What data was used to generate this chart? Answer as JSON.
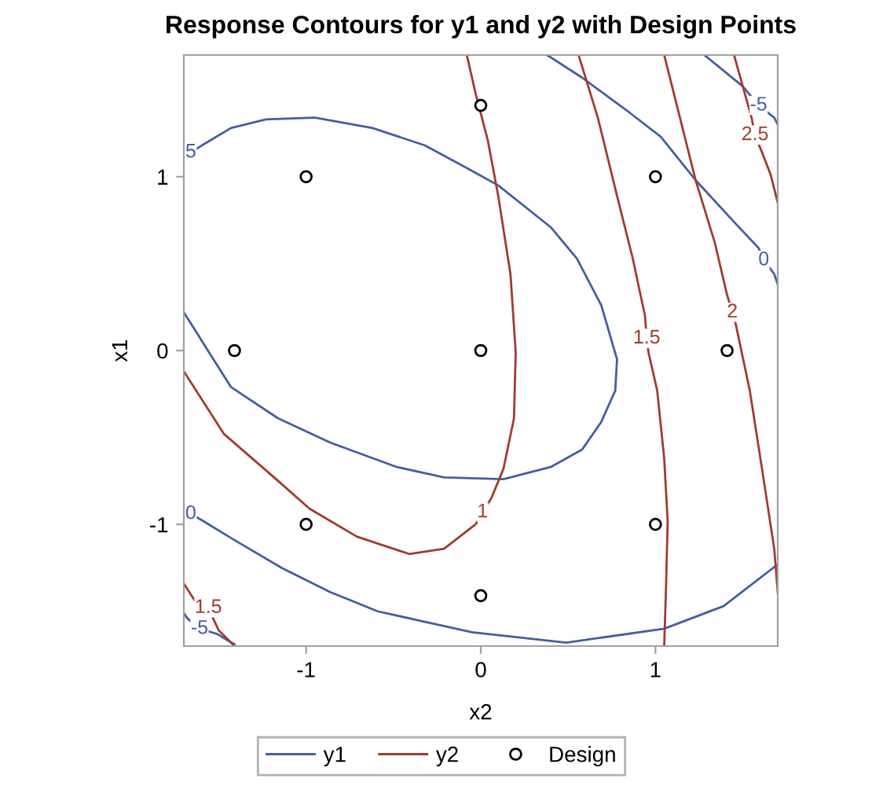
{
  "chart_data": {
    "type": "line",
    "title": "Response Contours for y1 and y2 with Design Points",
    "xlabel": "x2",
    "ylabel": "x1",
    "xlim": [
      -1.7,
      1.7
    ],
    "ylim": [
      -1.7,
      1.7
    ],
    "xticks": [
      -1,
      0,
      1
    ],
    "yticks": [
      -1,
      0,
      1
    ],
    "grid": false,
    "legend": "bottom",
    "line_style": "solid",
    "series": [
      {
        "name": "y1",
        "color": "#445fa0",
        "x": [
          -1.66,
          -1.58,
          -1.43,
          -1.23,
          -0.95,
          -0.62,
          -0.32,
          -0.08,
          0.1,
          0.4,
          0.55,
          0.69,
          0.78,
          0.77,
          0.69,
          0.58,
          0.4,
          0.13,
          -0.21,
          -0.48,
          -0.86,
          -1.16,
          -1.43,
          -1.7
        ],
        "values": [
          1.14,
          1.19,
          1.28,
          1.33,
          1.34,
          1.28,
          1.18,
          1.05,
          0.95,
          0.71,
          0.53,
          0.26,
          -0.05,
          -0.23,
          -0.41,
          -0.57,
          -0.67,
          -0.74,
          -0.73,
          -0.67,
          -0.53,
          -0.39,
          -0.21,
          0.22
        ]
      },
      {
        "color": "#445fa0",
        "x": [
          0.38,
          0.58,
          0.85,
          1.03,
          1.23,
          1.45,
          1.59,
          1.62,
          1.68,
          1.7
        ],
        "values": [
          1.7,
          1.57,
          1.37,
          1.23,
          0.98,
          0.74,
          0.59,
          0.52,
          0.44,
          0.38
        ]
      },
      {
        "color": "#445fa0",
        "x": [
          -1.66,
          -1.59,
          -1.41,
          -1.14,
          -0.86,
          -0.59,
          -0.32,
          -0.05,
          0.49,
          1.05,
          1.39,
          1.7
        ],
        "values": [
          -0.94,
          -0.98,
          -1.09,
          -1.25,
          -1.39,
          -1.5,
          -1.56,
          -1.62,
          -1.68,
          -1.6,
          -1.47,
          -1.23
        ]
      },
      {
        "color": "#445fa0",
        "x": [
          1.28,
          1.5,
          1.59,
          1.68,
          1.7
        ],
        "values": [
          1.7,
          1.52,
          1.41,
          1.34,
          1.3
        ]
      },
      {
        "color": "#445fa0",
        "x": [
          -1.7,
          -1.68,
          -1.61,
          -1.51,
          -1.41
        ],
        "values": [
          -1.51,
          -1.54,
          -1.6,
          -1.63,
          -1.69
        ]
      },
      {
        "name": "y2",
        "color": "#a23a2e",
        "x": [
          -0.08,
          -0.03,
          0.04,
          0.1,
          0.17,
          0.2,
          0.19,
          0.13,
          0.06,
          0.01,
          -0.03,
          -0.21,
          -0.41,
          -0.71,
          -0.98,
          -1.16,
          -1.47,
          -1.7
        ],
        "values": [
          1.7,
          1.48,
          1.21,
          0.89,
          0.44,
          -0.01,
          -0.39,
          -0.68,
          -0.85,
          -0.93,
          -1.0,
          -1.14,
          -1.17,
          -1.07,
          -0.91,
          -0.75,
          -0.48,
          -0.12
        ]
      },
      {
        "color": "#a23a2e",
        "x": [
          0.56,
          0.67,
          0.78,
          0.87,
          0.94,
          0.95,
          0.96,
          1.01,
          1.05,
          1.07,
          1.06,
          1.05
        ],
        "values": [
          1.7,
          1.34,
          0.89,
          0.53,
          0.2,
          0.07,
          -0.01,
          -0.23,
          -0.62,
          -0.98,
          -1.38,
          -1.7
        ]
      },
      {
        "color": "#a23a2e",
        "x": [
          -1.7,
          -1.63,
          -1.56,
          -1.5,
          -1.42
        ],
        "values": [
          -1.34,
          -1.45,
          -1.48,
          -1.61,
          -1.69
        ]
      },
      {
        "color": "#a23a2e",
        "x": [
          1.05,
          1.14,
          1.23,
          1.34,
          1.41,
          1.44,
          1.46,
          1.54,
          1.61,
          1.68,
          1.7
        ],
        "values": [
          1.7,
          1.34,
          0.98,
          0.62,
          0.32,
          0.22,
          0.15,
          -0.23,
          -0.68,
          -1.14,
          -1.39
        ]
      },
      {
        "color": "#a23a2e",
        "x": [
          1.45,
          1.5,
          1.55,
          1.57,
          1.61,
          1.66,
          1.7
        ],
        "values": [
          1.7,
          1.52,
          1.34,
          1.24,
          1.14,
          1.01,
          0.85
        ]
      },
      {
        "name": "Design",
        "type": "scatter",
        "marker": "circle",
        "color": "#000000",
        "x": [
          -1,
          1,
          -1,
          1,
          -1.41,
          1.41,
          0,
          0,
          0
        ],
        "values": [
          -1,
          -1,
          1,
          1,
          0,
          0,
          -1.41,
          1.41,
          0
        ]
      }
    ],
    "annotations": [
      {
        "text": "5",
        "x": -1.66,
        "y": 1.14
      },
      {
        "text": "0",
        "x": 1.62,
        "y": 0.52
      },
      {
        "text": "0",
        "x": -1.66,
        "y": -0.94
      },
      {
        "text": "-5",
        "x": 1.59,
        "y": 1.41
      },
      {
        "text": "-5",
        "x": -1.61,
        "y": -1.6
      },
      {
        "text": "1",
        "x": 0.01,
        "y": -0.93
      },
      {
        "text": "1.5",
        "x": 0.95,
        "y": 0.07
      },
      {
        "text": "1.5",
        "x": -1.56,
        "y": -1.48
      },
      {
        "text": "2",
        "x": 1.44,
        "y": 0.22
      },
      {
        "text": "2.5",
        "x": 1.57,
        "y": 1.24
      }
    ]
  }
}
